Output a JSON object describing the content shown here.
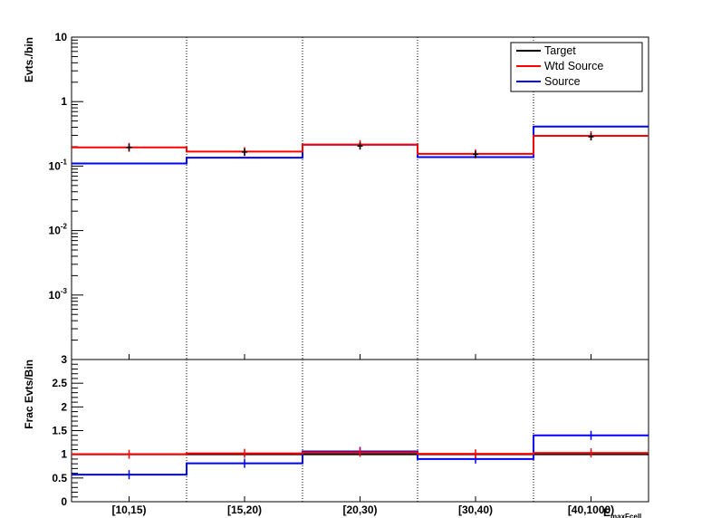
{
  "chart_data": [
    {
      "type": "line",
      "panel": "top",
      "xlabel": "E_maxFcell",
      "ylabel": "Evts./bin",
      "categories": [
        "[10,15)",
        "[15,20)",
        "[20,30)",
        "[30,40)",
        "[40,1000)"
      ],
      "yscale": "log",
      "ylim": [
        0.0001,
        10
      ],
      "yticks": [
        {
          "value": 10,
          "label": "10"
        },
        {
          "value": 1,
          "label": "1"
        },
        {
          "value": 0.1,
          "label": "10",
          "exp": "-1"
        },
        {
          "value": 0.01,
          "label": "10",
          "exp": "-2"
        },
        {
          "value": 0.001,
          "label": "10",
          "exp": "-3"
        }
      ],
      "grid": "vertical dotted at bin edges",
      "legend_position": "top-right",
      "series": [
        {
          "name": "Target",
          "color": "#000000",
          "style": "points",
          "values": [
            0.195,
            0.165,
            0.205,
            0.152,
            0.285
          ]
        },
        {
          "name": "Wtd Source",
          "color": "#ff0000",
          "style": "step",
          "values": [
            0.195,
            0.168,
            0.215,
            0.155,
            0.295
          ]
        },
        {
          "name": "Source",
          "color": "#0000ff",
          "style": "step",
          "values": [
            0.11,
            0.135,
            0.215,
            0.138,
            0.41
          ]
        }
      ]
    },
    {
      "type": "line",
      "panel": "bottom",
      "xlabel": "E_maxFcell",
      "ylabel": "Frac Evts/Bin",
      "categories": [
        "[10,15)",
        "[15,20)",
        "[20,30)",
        "[30,40)",
        "[40,1000)"
      ],
      "yscale": "linear",
      "ylim": [
        0,
        3
      ],
      "yticks": [
        {
          "value": 0,
          "label": "0"
        },
        {
          "value": 0.5,
          "label": "0.5"
        },
        {
          "value": 1,
          "label": "1"
        },
        {
          "value": 1.5,
          "label": "1.5"
        },
        {
          "value": 2,
          "label": "2"
        },
        {
          "value": 2.5,
          "label": "2.5"
        },
        {
          "value": 3,
          "label": "3"
        }
      ],
      "grid": "vertical dotted at bin edges",
      "series": [
        {
          "name": "Target",
          "color": "#000000",
          "style": "step",
          "values": [
            1.0,
            1.0,
            1.0,
            1.0,
            1.0
          ]
        },
        {
          "name": "Wtd Source",
          "color": "#ff0000",
          "style": "step",
          "values": [
            1.0,
            1.02,
            1.04,
            1.01,
            1.03
          ]
        },
        {
          "name": "Source",
          "color": "#0000ff",
          "style": "step",
          "values": [
            0.57,
            0.81,
            1.06,
            0.9,
            1.4
          ]
        }
      ]
    }
  ],
  "x_axis_title_main": "E",
  "x_axis_title_sub": "maxFcell"
}
